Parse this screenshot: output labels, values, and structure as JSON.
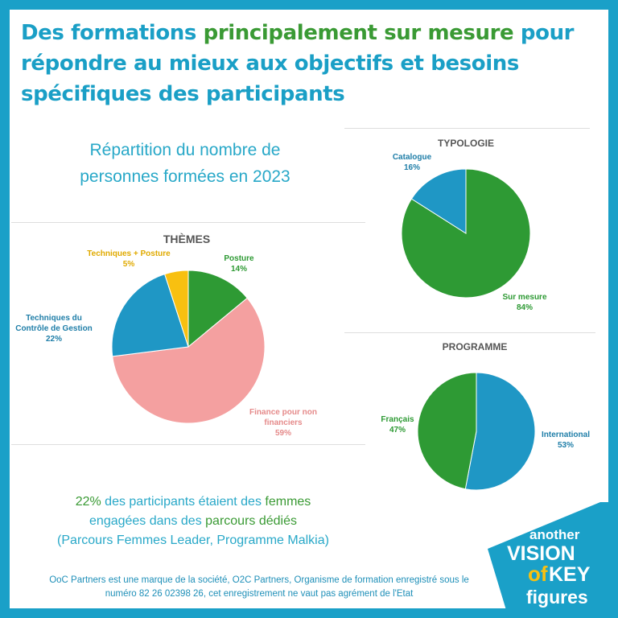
{
  "header": {
    "title_part1": "Des formations ",
    "title_highlight": "principalement sur mesure",
    "title_part2": " pour répondre au mieux aux objectifs et besoins spécifiques des participants"
  },
  "subtitle": {
    "line1": "Répartition du nombre de",
    "line2": "personnes formées en 2023"
  },
  "colors": {
    "frame": "#1aa0c8",
    "title_blue": "#1a9fc6",
    "accent_green": "#3a9a34"
  },
  "chart_data": [
    {
      "type": "pie",
      "title": "THÈMES",
      "slices": [
        {
          "label": "Posture",
          "value": 14,
          "pct": "14%",
          "color": "#2e9a34"
        },
        {
          "label": "Finance pour non financiers",
          "value": 59,
          "pct": "59%",
          "color": "#f4a0a0"
        },
        {
          "label": "Techniques du Contrôle de Gestion",
          "value": 22,
          "pct": "22%",
          "color": "#1f97c5"
        },
        {
          "label": "Techniques + Posture",
          "value": 5,
          "pct": "5%",
          "color": "#f8c010"
        }
      ]
    },
    {
      "type": "pie",
      "title": "TYPOLOGIE",
      "slices": [
        {
          "label": "Sur mesure",
          "value": 84,
          "pct": "84%",
          "color": "#2e9a34"
        },
        {
          "label": "Catalogue",
          "value": 16,
          "pct": "16%",
          "color": "#1f97c5"
        }
      ]
    },
    {
      "type": "pie",
      "title": "PROGRAMME",
      "slices": [
        {
          "label": "International",
          "value": 53,
          "pct": "53%",
          "color": "#1f97c5"
        },
        {
          "label": "Français",
          "value": 47,
          "pct": "47%",
          "color": "#2e9a34"
        }
      ]
    }
  ],
  "stat": {
    "pct": "22%",
    "text1": " des participants étaient des ",
    "women": "femmes",
    "text2": "engagées dans des ",
    "paths": "parcours dédiés",
    "programs": "(Parcours Femmes Leader, Programme Malkia)"
  },
  "footer": {
    "line1": "OoC Partners est une marque de la société, O2C Partners, Organisme de formation enregistré sous le",
    "line2": "numéro 82 26 02398 26, cet enregistrement  ne vaut pas agrément de l'Etat"
  },
  "logo": {
    "word1": "another",
    "word2": "VISION",
    "word3": "of",
    "word4": "KEY",
    "word5": "figures"
  }
}
